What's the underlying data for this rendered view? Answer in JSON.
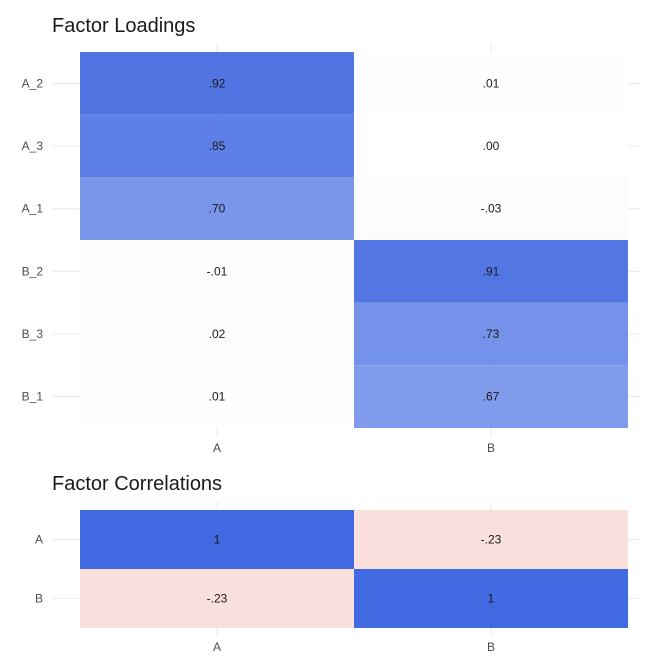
{
  "chart_data": [
    {
      "type": "heatmap",
      "title": "Factor Loadings",
      "columns": [
        "A",
        "B"
      ],
      "rows": [
        "A_2",
        "A_3",
        "A_1",
        "B_2",
        "B_3",
        "B_1"
      ],
      "values": [
        [
          0.92,
          0.01
        ],
        [
          0.85,
          0.0
        ],
        [
          0.7,
          -0.03
        ],
        [
          -0.01,
          0.91
        ],
        [
          0.02,
          0.73
        ],
        [
          0.01,
          0.67
        ]
      ],
      "labels": [
        [
          ".92",
          ".01"
        ],
        [
          ".85",
          ".00"
        ],
        [
          ".70",
          "-.03"
        ],
        [
          "-.01",
          ".91"
        ],
        [
          ".02",
          ".73"
        ],
        [
          ".01",
          ".67"
        ]
      ],
      "color_scale": {
        "low": "#E8796A",
        "mid": "#FFFFFF",
        "high": "#4169E1",
        "limits": [
          -1,
          1
        ]
      },
      "grid": true
    },
    {
      "type": "heatmap",
      "title": "Factor Correlations",
      "columns": [
        "A",
        "B"
      ],
      "rows": [
        "A",
        "B"
      ],
      "values": [
        [
          1,
          -0.23
        ],
        [
          -0.23,
          1
        ]
      ],
      "labels": [
        [
          "1",
          "-.23"
        ],
        [
          "-.23",
          "1"
        ]
      ],
      "color_scale": {
        "low": "#E8796A",
        "mid": "#FFFFFF",
        "high": "#4169E1",
        "limits": [
          -1,
          1
        ]
      },
      "grid": true
    }
  ]
}
